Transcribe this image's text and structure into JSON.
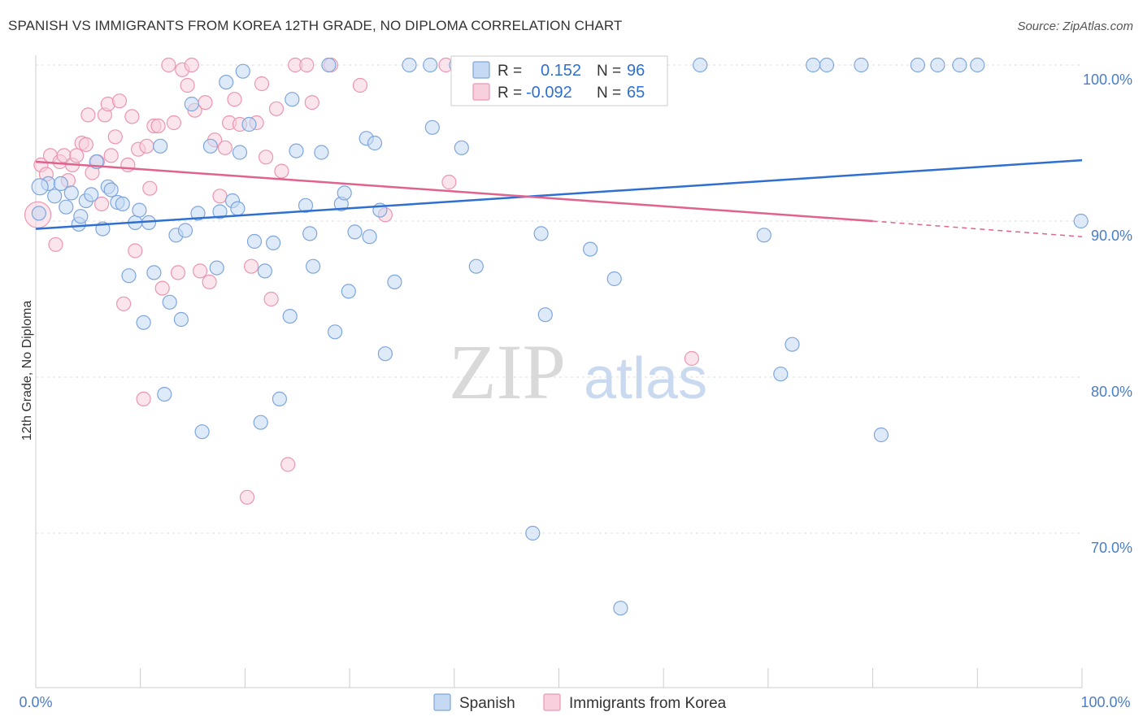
{
  "header": {
    "title": "SPANISH VS IMMIGRANTS FROM KOREA 12TH GRADE, NO DIPLOMA CORRELATION CHART",
    "source": "Source: ZipAtlas.com"
  },
  "watermark": {
    "zip": "ZIP",
    "atlas": "atlas"
  },
  "colors": {
    "blue_fill": "#c5d9f3",
    "blue_stroke": "#7ea6dc",
    "blue_line": "#2f6fd0",
    "pink_fill": "#f8cfdc",
    "pink_stroke": "#eb96b0",
    "pink_line": "#e0638d",
    "grid": "#dddddd",
    "axis_label": "#4a7cc9"
  },
  "legend_box": {
    "r_label": "R =",
    "n_label": "N =",
    "rows": [
      {
        "r": "0.152",
        "n": "96"
      },
      {
        "r": "-0.092",
        "n": "65"
      }
    ]
  },
  "chart_data": {
    "type": "scatter",
    "title": "SPANISH VS IMMIGRANTS FROM KOREA 12TH GRADE, NO DIPLOMA CORRELATION CHART",
    "xlabel": "",
    "ylabel": "12th Grade, No Diploma",
    "xlim": [
      0,
      100
    ],
    "ylim": [
      61,
      102
    ],
    "x_tick_labels": [
      "0.0%",
      "100.0%"
    ],
    "y_ticks": [
      {
        "value": 100,
        "label": "100.0%"
      },
      {
        "value": 90,
        "label": "90.0%"
      },
      {
        "value": 80,
        "label": "80.0%"
      },
      {
        "value": 70,
        "label": "70.0%"
      }
    ],
    "legend_position": "bottom",
    "series": [
      {
        "name": "Spanish",
        "r": 0.152,
        "n": 96,
        "trend": {
          "x": [
            0,
            100
          ],
          "y": [
            89.5,
            93.9
          ]
        },
        "points": [
          [
            0.3,
            90.5
          ],
          [
            1.2,
            92.4
          ],
          [
            1.8,
            91.6
          ],
          [
            2.4,
            92.4
          ],
          [
            2.9,
            90.9
          ],
          [
            3.4,
            91.8
          ],
          [
            4.1,
            89.8
          ],
          [
            4.3,
            90.3
          ],
          [
            4.8,
            91.3
          ],
          [
            5.3,
            91.7
          ],
          [
            5.8,
            93.8
          ],
          [
            6.4,
            89.5
          ],
          [
            6.9,
            92.2
          ],
          [
            7.2,
            92
          ],
          [
            7.8,
            91.2
          ],
          [
            8.3,
            91.1
          ],
          [
            8.9,
            86.5
          ],
          [
            9.5,
            89.9
          ],
          [
            9.9,
            90.7
          ],
          [
            10.3,
            83.5
          ],
          [
            10.8,
            89.9
          ],
          [
            11.3,
            86.7
          ],
          [
            11.9,
            94.8
          ],
          [
            12.3,
            78.9
          ],
          [
            12.8,
            84.8
          ],
          [
            13.4,
            89.1
          ],
          [
            13.9,
            83.7
          ],
          [
            14.3,
            89.4
          ],
          [
            14.9,
            97.5
          ],
          [
            15.5,
            90.5
          ],
          [
            15.9,
            76.5
          ],
          [
            16.7,
            94.8
          ],
          [
            17.3,
            87
          ],
          [
            17.6,
            90.6
          ],
          [
            18.2,
            98.9
          ],
          [
            18.8,
            91.3
          ],
          [
            19.3,
            90.8
          ],
          [
            19.5,
            94.4
          ],
          [
            19.8,
            99.6
          ],
          [
            20.4,
            96.2
          ],
          [
            20.9,
            88.7
          ],
          [
            21.5,
            77.1
          ],
          [
            21.9,
            86.8
          ],
          [
            22.7,
            88.6
          ],
          [
            23.3,
            78.6
          ],
          [
            24.3,
            83.9
          ],
          [
            24.5,
            97.8
          ],
          [
            24.9,
            94.5
          ],
          [
            25.8,
            91
          ],
          [
            26.2,
            89.2
          ],
          [
            26.5,
            87.1
          ],
          [
            27.3,
            94.4
          ],
          [
            28,
            100
          ],
          [
            28.6,
            82.9
          ],
          [
            29.2,
            91.1
          ],
          [
            29.5,
            91.8
          ],
          [
            29.9,
            85.5
          ],
          [
            30.5,
            89.3
          ],
          [
            31.6,
            95.3
          ],
          [
            31.9,
            89
          ],
          [
            32.4,
            95
          ],
          [
            32.9,
            90.7
          ],
          [
            33.4,
            81.5
          ],
          [
            34.3,
            86.1
          ],
          [
            35.7,
            100
          ],
          [
            37.7,
            100
          ],
          [
            37.9,
            96
          ],
          [
            40.2,
            100
          ],
          [
            40.7,
            94.7
          ],
          [
            41.3,
            100
          ],
          [
            42.1,
            87.1
          ],
          [
            46.4,
            99.5
          ],
          [
            47.5,
            70
          ],
          [
            48.3,
            89.2
          ],
          [
            48.7,
            84
          ],
          [
            51.8,
            100
          ],
          [
            52.7,
            100
          ],
          [
            53,
            88.2
          ],
          [
            54.7,
            100
          ],
          [
            55.3,
            86.3
          ],
          [
            55.9,
            65.2
          ],
          [
            56.3,
            100
          ],
          [
            63.5,
            100
          ],
          [
            69.6,
            89.1
          ],
          [
            71.2,
            80.2
          ],
          [
            72.3,
            82.1
          ],
          [
            74.3,
            100
          ],
          [
            75.6,
            100
          ],
          [
            78.9,
            100
          ],
          [
            80.8,
            76.3
          ],
          [
            84.3,
            100
          ],
          [
            86.2,
            100
          ],
          [
            88.3,
            100
          ],
          [
            90,
            100
          ],
          [
            99.9,
            90
          ]
        ]
      },
      {
        "name": "Immigrants from Korea",
        "r": -0.092,
        "n": 65,
        "trend": {
          "x": [
            0,
            80
          ],
          "y": [
            93.8,
            90
          ]
        },
        "trend_dashed": {
          "x": [
            80,
            100
          ],
          "y": [
            90,
            89
          ]
        },
        "points": [
          [
            0.5,
            93.6
          ],
          [
            1,
            93
          ],
          [
            1.4,
            94.2
          ],
          [
            1.9,
            88.5
          ],
          [
            2.3,
            93.8
          ],
          [
            2.7,
            94.2
          ],
          [
            3.1,
            92.6
          ],
          [
            3.5,
            93.6
          ],
          [
            3.9,
            94.2
          ],
          [
            4.4,
            95
          ],
          [
            4.8,
            94.9
          ],
          [
            5,
            96.8
          ],
          [
            5.4,
            93.1
          ],
          [
            5.9,
            93.8
          ],
          [
            6.3,
            91.1
          ],
          [
            6.6,
            96.8
          ],
          [
            6.9,
            97.5
          ],
          [
            7.2,
            94.2
          ],
          [
            7.6,
            95.4
          ],
          [
            8,
            97.7
          ],
          [
            8.4,
            84.7
          ],
          [
            8.8,
            93.6
          ],
          [
            9.2,
            96.7
          ],
          [
            9.5,
            88.1
          ],
          [
            9.8,
            94.6
          ],
          [
            10.3,
            78.6
          ],
          [
            10.6,
            94.8
          ],
          [
            10.9,
            92.1
          ],
          [
            11.3,
            96.1
          ],
          [
            11.7,
            96.1
          ],
          [
            12.1,
            85.7
          ],
          [
            12.7,
            100
          ],
          [
            13.2,
            96.3
          ],
          [
            13.6,
            86.7
          ],
          [
            14,
            99.7
          ],
          [
            14.5,
            98.7
          ],
          [
            14.9,
            100
          ],
          [
            15.2,
            97.1
          ],
          [
            15.7,
            86.8
          ],
          [
            16.2,
            97.6
          ],
          [
            16.6,
            86.1
          ],
          [
            17.1,
            95.2
          ],
          [
            17.6,
            91.6
          ],
          [
            18.1,
            94.7
          ],
          [
            18.5,
            96.3
          ],
          [
            19,
            97.8
          ],
          [
            19.5,
            96.2
          ],
          [
            20.2,
            72.3
          ],
          [
            20.6,
            87.1
          ],
          [
            21.1,
            96.3
          ],
          [
            21.6,
            98.8
          ],
          [
            22,
            94.1
          ],
          [
            22.5,
            85
          ],
          [
            23,
            97.2
          ],
          [
            23.5,
            93.2
          ],
          [
            24.1,
            74.4
          ],
          [
            24.8,
            100
          ],
          [
            25.9,
            100
          ],
          [
            26.4,
            97.6
          ],
          [
            28.2,
            100
          ],
          [
            31,
            98.7
          ],
          [
            33.4,
            90.4
          ],
          [
            39.2,
            100
          ],
          [
            39.5,
            92.5
          ],
          [
            62.7,
            81.2
          ]
        ]
      }
    ]
  }
}
